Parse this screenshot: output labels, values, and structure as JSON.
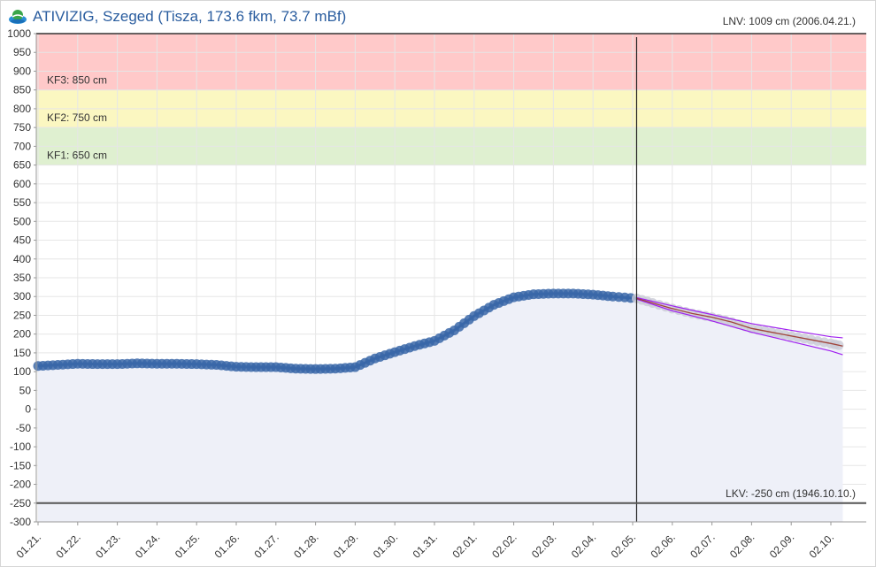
{
  "header": {
    "title": "ATIVIZIG, Szeged (Tisza, 173.6 fkm, 73.7 mBf)",
    "logo_icon": "globe-water-icon"
  },
  "chart_data": {
    "type": "area",
    "ylim": [
      -300,
      1000
    ],
    "ytick_step": 50,
    "x_categories": [
      "01.21.",
      "01.22.",
      "01.23.",
      "01.24.",
      "01.25.",
      "01.26.",
      "01.27.",
      "01.28.",
      "01.29.",
      "01.30.",
      "01.31.",
      "02.01.",
      "02.02.",
      "02.03.",
      "02.04.",
      "02.05.",
      "02.06.",
      "02.07.",
      "02.08.",
      "02.09.",
      "02.10."
    ],
    "grid": true,
    "bands": [
      {
        "label": "KF3: 850 cm",
        "from": 850,
        "to": 1000,
        "color": "#ffc9c9"
      },
      {
        "label": "KF2: 750 cm",
        "from": 750,
        "to": 850,
        "color": "#fbf7c1"
      },
      {
        "label": "KF1: 650 cm",
        "from": 650,
        "to": 750,
        "color": "#dff0d0"
      }
    ],
    "annotations": {
      "lnv": {
        "label": "LNV: 1009 cm (2006.04.21.)",
        "value": 1009
      },
      "lkv": {
        "label": "LKV: -250 cm (1946.10.10.)",
        "value": -250
      }
    },
    "now_marker_x": 15.1,
    "observed": {
      "x": [
        0.0,
        0.5,
        1.0,
        1.5,
        2.0,
        2.5,
        3.0,
        3.5,
        4.0,
        4.5,
        5.0,
        5.5,
        6.0,
        6.5,
        7.0,
        7.5,
        8.0,
        8.5,
        9.0,
        9.5,
        10.0,
        10.5,
        11.0,
        11.5,
        12.0,
        12.5,
        13.0,
        13.5,
        14.0,
        14.5,
        15.1
      ],
      "y": [
        115,
        118,
        121,
        120,
        120,
        122,
        121,
        121,
        120,
        118,
        113,
        112,
        112,
        108,
        107,
        108,
        112,
        135,
        152,
        168,
        182,
        210,
        248,
        278,
        298,
        306,
        308,
        308,
        305,
        300,
        295
      ]
    },
    "forecast": {
      "x": [
        15.1,
        15.5,
        16.0,
        16.5,
        17.0,
        17.5,
        18.0,
        18.5,
        19.0,
        19.5,
        20.0,
        20.3
      ],
      "y": [
        295,
        283,
        268,
        255,
        245,
        232,
        215,
        205,
        195,
        185,
        175,
        168
      ]
    },
    "forecast_upper": {
      "x": [
        15.1,
        16.0,
        17.0,
        18.0,
        19.0,
        20.0,
        20.3
      ],
      "y": [
        297,
        275,
        252,
        228,
        210,
        193,
        190
      ]
    },
    "forecast_lower": {
      "x": [
        15.1,
        16.0,
        17.0,
        18.0,
        19.0,
        20.0,
        20.3
      ],
      "y": [
        293,
        262,
        235,
        205,
        180,
        155,
        145
      ]
    },
    "colors": {
      "observed": "#3a67a8",
      "forecast_points": "#c9cad6",
      "forecast_line": "#a0443a",
      "forecast_bounds": "#a020f0",
      "area_fill": "#eef0f8",
      "gridline": "#e6e6e6",
      "axis": "#333333",
      "marker": "#222222"
    }
  }
}
